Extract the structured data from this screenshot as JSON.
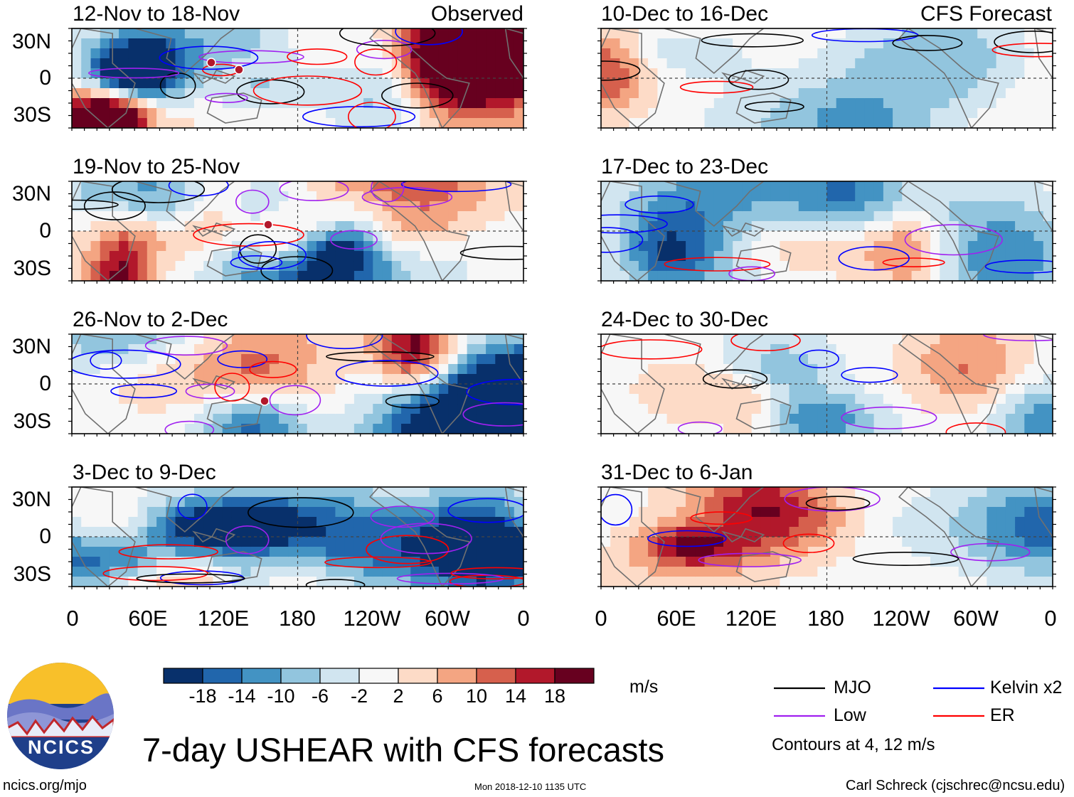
{
  "chart_data": {
    "type": "heatmap",
    "title": "7-day USHEAR with CFS forecasts",
    "variable": "USHEAR",
    "units": "m/s",
    "observed_label": "Observed",
    "forecast_label": "CFS Forecast",
    "lat_ticks": [
      "30N",
      "0",
      "30S"
    ],
    "lon_ticks": [
      "0",
      "60E",
      "120E",
      "180",
      "120W",
      "60W",
      "0"
    ],
    "lat_range": [
      -40,
      40
    ],
    "lon_range": [
      0,
      360
    ],
    "observed_panels": [
      {
        "period": "12-Nov to 18-Nov"
      },
      {
        "period": "19-Nov to 25-Nov"
      },
      {
        "period": "26-Nov to 2-Dec"
      },
      {
        "period": "3-Dec to 9-Dec"
      }
    ],
    "forecast_panels": [
      {
        "period": "10-Dec to 16-Dec"
      },
      {
        "period": "17-Dec to 23-Dec"
      },
      {
        "period": "24-Dec to 30-Dec"
      },
      {
        "period": "31-Dec to 6-Jan"
      }
    ],
    "colorbar": {
      "levels": [
        "-18",
        "-14",
        "-10",
        "-6",
        "-2",
        "2",
        "6",
        "10",
        "14",
        "18"
      ],
      "colors": [
        "#08306b",
        "#2166ac",
        "#4393c3",
        "#92c5de",
        "#d1e5f0",
        "#f7f7f7",
        "#fddbc7",
        "#f4a582",
        "#d6604d",
        "#b2182b",
        "#67001f"
      ]
    },
    "legend": [
      {
        "name": "MJO",
        "color": "#000000"
      },
      {
        "name": "Kelvin x2",
        "color": "#0000ff"
      },
      {
        "name": "Low",
        "color": "#a020f0"
      },
      {
        "name": "ER",
        "color": "#ff0000"
      }
    ],
    "contour_note": "Contours at 4, 12 m/s"
  },
  "footer": {
    "url": "ncics.org/mjo",
    "timestamp": "Mon 2018-12-10 1135 UTC",
    "author": "Carl Schreck (cjschrec@ncsu.edu)"
  },
  "logo": {
    "text": "NCICS"
  }
}
